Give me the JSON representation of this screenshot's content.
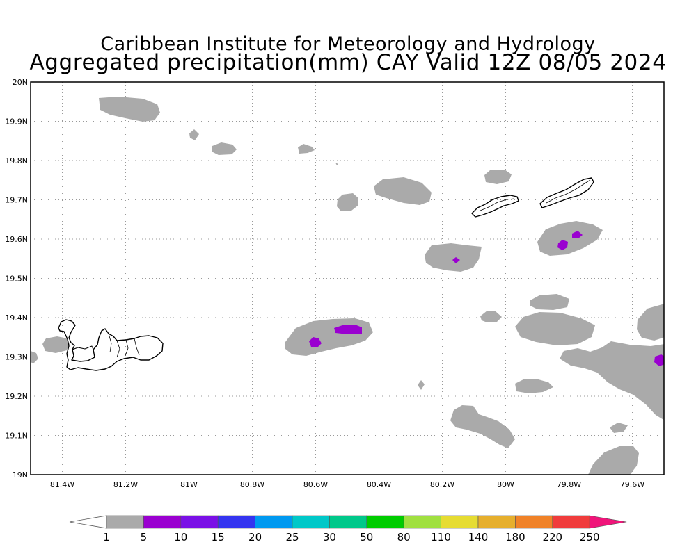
{
  "title": {
    "line1": "Caribbean Institute for Meteorology and Hydrology",
    "line2": "Aggregated precipitation(mm) CAY Valid 12Z 08/05 2024"
  },
  "map": {
    "lon_range": [
      -81.5,
      -79.5
    ],
    "lat_range": [
      19.0,
      20.0
    ],
    "grid": "dotted",
    "lat_ticks": [
      {
        "value": 20.0,
        "label": "20N"
      },
      {
        "value": 19.9,
        "label": "19.9N"
      },
      {
        "value": 19.8,
        "label": "19.8N"
      },
      {
        "value": 19.7,
        "label": "19.7N"
      },
      {
        "value": 19.6,
        "label": "19.6N"
      },
      {
        "value": 19.5,
        "label": "19.5N"
      },
      {
        "value": 19.4,
        "label": "19.4N"
      },
      {
        "value": 19.3,
        "label": "19.3N"
      },
      {
        "value": 19.2,
        "label": "19.2N"
      },
      {
        "value": 19.1,
        "label": "19.1N"
      },
      {
        "value": 19.0,
        "label": "19N"
      }
    ],
    "lon_ticks": [
      {
        "value": -81.4,
        "label": "81.4W"
      },
      {
        "value": -81.2,
        "label": "81.2W"
      },
      {
        "value": -81.0,
        "label": "81W"
      },
      {
        "value": -80.8,
        "label": "80.8W"
      },
      {
        "value": -80.6,
        "label": "80.6W"
      },
      {
        "value": -80.4,
        "label": "80.4W"
      },
      {
        "value": -80.2,
        "label": "80.2W"
      },
      {
        "value": -80.0,
        "label": "80W"
      },
      {
        "value": -79.8,
        "label": "79.8W"
      },
      {
        "value": -79.6,
        "label": "79.6W"
      }
    ],
    "islands": [
      "Grand Cayman",
      "Little Cayman",
      "Cayman Brac"
    ]
  },
  "colorbar": {
    "labels": [
      "1",
      "5",
      "10",
      "15",
      "20",
      "25",
      "30",
      "50",
      "80",
      "110",
      "140",
      "180",
      "220",
      "250"
    ],
    "colors": [
      "#aaaaaa",
      "#9a00d0",
      "#7a10e6",
      "#3434f0",
      "#0099f0",
      "#00c8c8",
      "#00c88a",
      "#00cc00",
      "#a0e040",
      "#e6dc32",
      "#e6af2d",
      "#f08228",
      "#f03c3c",
      "#f0147a"
    ],
    "low_end_color": "#ffffff",
    "high_end_color": "#f0147a"
  },
  "colors": {
    "rain_light": "#aaaaaa",
    "rain_moderate": "#9a00d0",
    "coastline": "#000000"
  }
}
